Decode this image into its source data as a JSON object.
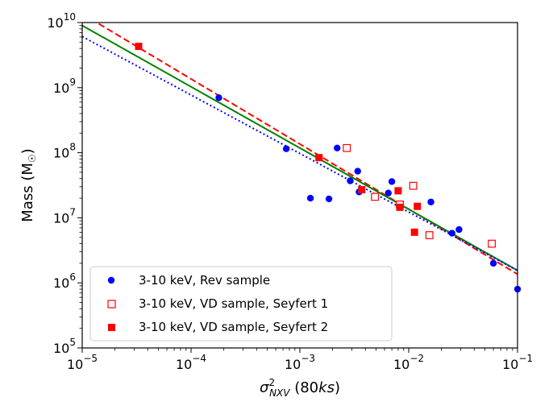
{
  "chart_data": {
    "type": "scatter",
    "x_scale": "log",
    "y_scale": "log",
    "xlim": [
      1e-05,
      0.1
    ],
    "ylim": [
      100000,
      10000000000
    ],
    "xlabel": {
      "main": "σ",
      "sup": "2",
      "sub": "NXV",
      "suffix_pre": " (80",
      "suffix_italic": "ks",
      "suffix_post": ")"
    },
    "ylabel": {
      "main": "Mass (M",
      "sub": "☉",
      "post": ")"
    },
    "x_ticks": [
      {
        "value": 1e-05,
        "base": "10",
        "exp": "−5"
      },
      {
        "value": 0.0001,
        "base": "10",
        "exp": "−4"
      },
      {
        "value": 0.001,
        "base": "10",
        "exp": "−3"
      },
      {
        "value": 0.01,
        "base": "10",
        "exp": "−2"
      },
      {
        "value": 0.1,
        "base": "10",
        "exp": "−1"
      }
    ],
    "y_ticks": [
      {
        "value": 100000,
        "base": "10",
        "exp": "5"
      },
      {
        "value": 1000000,
        "base": "10",
        "exp": "6"
      },
      {
        "value": 10000000,
        "base": "10",
        "exp": "7"
      },
      {
        "value": 100000000,
        "base": "10",
        "exp": "8"
      },
      {
        "value": 1000000000,
        "base": "10",
        "exp": "9"
      },
      {
        "value": 10000000000,
        "base": "10",
        "exp": "10"
      }
    ],
    "legend_position": "lower-left",
    "series": [
      {
        "name": "3-10 keV, Rev sample",
        "marker": "filled-circle",
        "color": "#0000ff",
        "points": [
          [
            0.00018,
            700000000
          ],
          [
            0.00075,
            115000000
          ],
          [
            0.00125,
            20000000
          ],
          [
            0.00185,
            19500000
          ],
          [
            0.0022,
            118000000
          ],
          [
            0.0029,
            37000000
          ],
          [
            0.0034,
            52000000
          ],
          [
            0.0035,
            25000000
          ],
          [
            0.0065,
            24000000
          ],
          [
            0.007,
            36000000
          ],
          [
            0.016,
            17500000
          ],
          [
            0.025,
            5800000
          ],
          [
            0.029,
            6600000
          ],
          [
            0.06,
            2000000
          ],
          [
            0.1,
            800000
          ]
        ]
      },
      {
        "name": "3-10 keV, VD sample, Seyfert 1",
        "marker": "open-square",
        "color": "#ff0000",
        "points": [
          [
            0.0027,
            118000000
          ],
          [
            0.0049,
            21000000
          ],
          [
            0.0083,
            16000000
          ],
          [
            0.011,
            31000000
          ],
          [
            0.0155,
            5400000
          ],
          [
            0.058,
            4000000
          ]
        ]
      },
      {
        "name": "3-10 keV, VD sample, Seyfert 2",
        "marker": "filled-square",
        "color": "#ff0000",
        "points": [
          [
            3.3e-05,
            4300000000
          ],
          [
            0.0015,
            84000000
          ],
          [
            0.0037,
            27000000
          ],
          [
            0.008,
            26000000
          ],
          [
            0.0083,
            14500000
          ],
          [
            0.0113,
            6000000
          ],
          [
            0.012,
            15000000
          ]
        ]
      }
    ],
    "fit_lines": [
      {
        "style": "dashed",
        "color": "#ff0000",
        "from": [
          1e-05,
          13600000000
        ],
        "to": [
          0.1,
          1360000
        ]
      },
      {
        "style": "solid",
        "color": "#008000",
        "from": [
          1e-05,
          9000000000
        ],
        "to": [
          0.1,
          1550000
        ]
      },
      {
        "style": "dotted",
        "color": "#0000ff",
        "from": [
          1e-05,
          6100000000
        ],
        "to": [
          0.1,
          1550000
        ]
      }
    ]
  }
}
